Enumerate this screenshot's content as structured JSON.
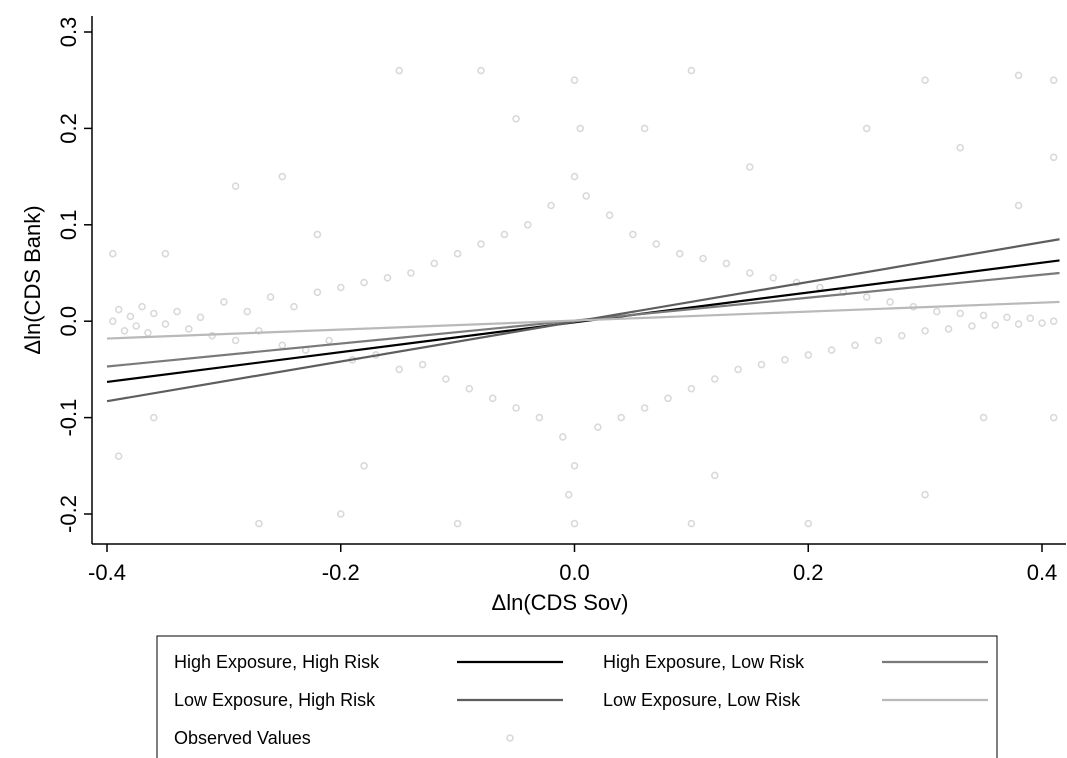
{
  "chart_data": {
    "type": "scatter",
    "xlabel": "Δln(CDS Sov)",
    "ylabel": "Δln(CDS Bank)",
    "xlim": [
      -0.4,
      0.415
    ],
    "ylim": [
      -0.23,
      0.3
    ],
    "x_ticks": [
      {
        "value": -0.4,
        "label": "-0.4"
      },
      {
        "value": -0.2,
        "label": "-0.2"
      },
      {
        "value": 0.0,
        "label": "0.0"
      },
      {
        "value": 0.2,
        "label": "0.2"
      },
      {
        "value": 0.4,
        "label": "0.4"
      }
    ],
    "y_ticks": [
      {
        "value": -0.2,
        "label": "-0.2"
      },
      {
        "value": -0.1,
        "label": "-0.1"
      },
      {
        "value": 0.0,
        "label": "0.0"
      },
      {
        "value": 0.1,
        "label": "0.1"
      },
      {
        "value": 0.2,
        "label": "0.2"
      },
      {
        "value": 0.3,
        "label": "0.3"
      }
    ],
    "grid": false,
    "legend_position": "bottom",
    "scatter": {
      "name": "Observed Values",
      "color": "#d9d9d9",
      "points": [
        [
          -0.395,
          0.0
        ],
        [
          -0.39,
          0.012
        ],
        [
          -0.385,
          -0.01
        ],
        [
          -0.38,
          0.005
        ],
        [
          -0.375,
          -0.005
        ],
        [
          -0.37,
          0.015
        ],
        [
          -0.365,
          -0.012
        ],
        [
          -0.36,
          0.008
        ],
        [
          -0.35,
          -0.003
        ],
        [
          -0.34,
          0.01
        ],
        [
          -0.33,
          -0.008
        ],
        [
          -0.32,
          0.004
        ],
        [
          -0.31,
          -0.015
        ],
        [
          -0.3,
          0.02
        ],
        [
          -0.29,
          -0.02
        ],
        [
          -0.28,
          0.01
        ],
        [
          -0.27,
          -0.01
        ],
        [
          -0.26,
          0.025
        ],
        [
          -0.25,
          -0.025
        ],
        [
          -0.24,
          0.015
        ],
        [
          -0.23,
          -0.03
        ],
        [
          -0.22,
          0.03
        ],
        [
          -0.21,
          -0.02
        ],
        [
          -0.2,
          0.035
        ],
        [
          -0.19,
          -0.04
        ],
        [
          -0.18,
          0.04
        ],
        [
          -0.17,
          -0.035
        ],
        [
          -0.16,
          0.045
        ],
        [
          -0.15,
          -0.05
        ],
        [
          -0.14,
          0.05
        ],
        [
          -0.13,
          -0.045
        ],
        [
          -0.12,
          0.06
        ],
        [
          -0.11,
          -0.06
        ],
        [
          -0.1,
          0.07
        ],
        [
          -0.09,
          -0.07
        ],
        [
          -0.08,
          0.08
        ],
        [
          -0.07,
          -0.08
        ],
        [
          -0.06,
          0.09
        ],
        [
          -0.05,
          -0.09
        ],
        [
          -0.04,
          0.1
        ],
        [
          -0.03,
          -0.1
        ],
        [
          -0.02,
          0.12
        ],
        [
          -0.01,
          -0.12
        ],
        [
          0.0,
          0.15
        ],
        [
          0.0,
          -0.15
        ],
        [
          0.005,
          0.2
        ],
        [
          -0.005,
          -0.18
        ],
        [
          0.0,
          0.25
        ],
        [
          0.0,
          -0.21
        ],
        [
          0.01,
          0.13
        ],
        [
          0.02,
          -0.11
        ],
        [
          0.03,
          0.11
        ],
        [
          0.04,
          -0.1
        ],
        [
          0.05,
          0.09
        ],
        [
          0.06,
          -0.09
        ],
        [
          0.07,
          0.08
        ],
        [
          0.08,
          -0.08
        ],
        [
          0.09,
          0.07
        ],
        [
          0.1,
          -0.07
        ],
        [
          0.11,
          0.065
        ],
        [
          0.12,
          -0.06
        ],
        [
          0.13,
          0.06
        ],
        [
          0.14,
          -0.05
        ],
        [
          0.15,
          0.05
        ],
        [
          0.16,
          -0.045
        ],
        [
          0.17,
          0.045
        ],
        [
          0.18,
          -0.04
        ],
        [
          0.19,
          0.04
        ],
        [
          0.2,
          -0.035
        ],
        [
          0.21,
          0.035
        ],
        [
          0.22,
          -0.03
        ],
        [
          0.23,
          0.03
        ],
        [
          0.24,
          -0.025
        ],
        [
          0.25,
          0.025
        ],
        [
          0.26,
          -0.02
        ],
        [
          0.27,
          0.02
        ],
        [
          0.28,
          -0.015
        ],
        [
          0.29,
          0.015
        ],
        [
          0.3,
          -0.01
        ],
        [
          0.31,
          0.01
        ],
        [
          0.32,
          -0.008
        ],
        [
          0.33,
          0.008
        ],
        [
          0.34,
          -0.005
        ],
        [
          0.35,
          0.006
        ],
        [
          0.36,
          -0.004
        ],
        [
          0.37,
          0.004
        ],
        [
          0.38,
          -0.003
        ],
        [
          0.39,
          0.003
        ],
        [
          0.4,
          -0.002
        ],
        [
          0.41,
          0.0
        ],
        [
          -0.15,
          0.26
        ],
        [
          -0.08,
          0.26
        ],
        [
          0.1,
          0.26
        ],
        [
          0.3,
          0.25
        ],
        [
          0.38,
          0.255
        ],
        [
          0.41,
          0.25
        ],
        [
          -0.29,
          0.14
        ],
        [
          -0.25,
          0.15
        ],
        [
          0.33,
          0.18
        ],
        [
          0.25,
          0.2
        ],
        [
          -0.27,
          -0.21
        ],
        [
          -0.2,
          -0.2
        ],
        [
          -0.1,
          -0.21
        ],
        [
          0.1,
          -0.21
        ],
        [
          0.2,
          -0.21
        ],
        [
          0.3,
          -0.18
        ],
        [
          0.35,
          -0.1
        ],
        [
          0.41,
          -0.1
        ],
        [
          -0.39,
          -0.14
        ],
        [
          -0.36,
          -0.1
        ],
        [
          -0.395,
          0.07
        ],
        [
          -0.35,
          0.07
        ],
        [
          0.38,
          0.12
        ],
        [
          0.41,
          0.17
        ],
        [
          -0.22,
          0.09
        ],
        [
          -0.18,
          -0.15
        ],
        [
          0.15,
          0.16
        ],
        [
          0.12,
          -0.16
        ],
        [
          -0.05,
          0.21
        ],
        [
          0.06,
          0.2
        ]
      ]
    },
    "series": [
      {
        "name": "High Exposure, High Risk",
        "color": "#000000",
        "x": [
          -0.4,
          0.415
        ],
        "y": [
          -0.063,
          0.063
        ]
      },
      {
        "name": "High Exposure, Low Risk",
        "color": "#7a7a7a",
        "x": [
          -0.4,
          0.415
        ],
        "y": [
          -0.047,
          0.05
        ]
      },
      {
        "name": "Low Exposure, High Risk",
        "color": "#5e5e5e",
        "x": [
          -0.4,
          0.415
        ],
        "y": [
          -0.083,
          0.085
        ]
      },
      {
        "name": "Low Exposure, Low Risk",
        "color": "#b9b9b9",
        "x": [
          -0.4,
          0.415
        ],
        "y": [
          -0.018,
          0.02
        ]
      }
    ]
  }
}
